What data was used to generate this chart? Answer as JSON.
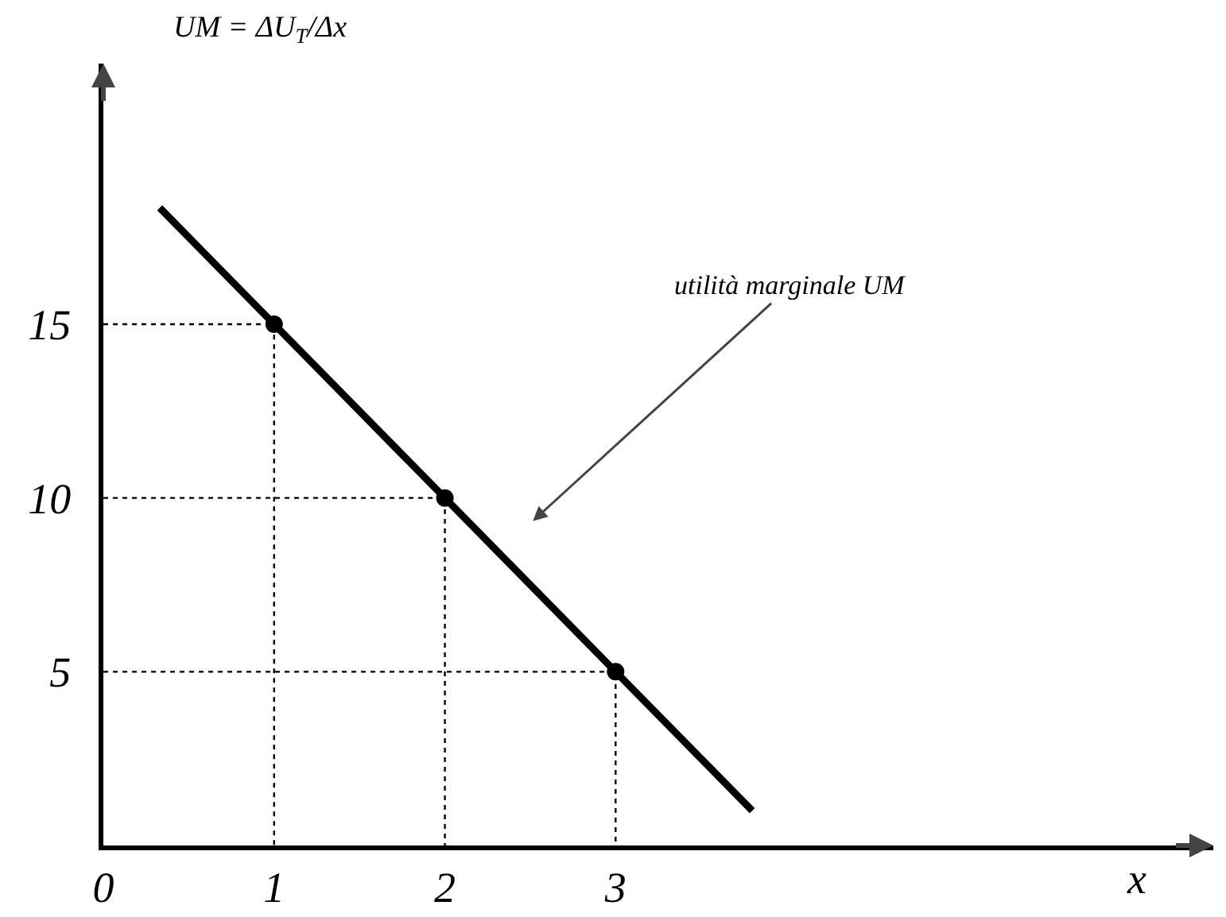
{
  "chart_data": {
    "type": "line",
    "ylabel": "UM = ΔU$_{T}$/Δx",
    "xlabel": "x",
    "xlim": [
      0,
      6.5
    ],
    "ylim": [
      0,
      22.5
    ],
    "xticks": [
      0,
      1,
      2,
      3
    ],
    "yticks": [
      5,
      10,
      15
    ],
    "annotations": [
      "utilità marginale UM"
    ],
    "series": [
      {
        "color": "#000000",
        "x": [
          0.33,
          3.8
        ],
        "values": [
          18.35,
          1
        ],
        "line_style": "solid",
        "marker": "none"
      },
      {
        "type": "scatter",
        "color": "#000000",
        "x": [
          1,
          2,
          3
        ],
        "values": [
          15,
          10,
          5
        ],
        "marker": "circle"
      },
      {
        "color": "#000000",
        "x": [
          0,
          1,
          1
        ],
        "values": [
          15,
          15,
          0
        ],
        "line_style": "dotted",
        "marker": "none"
      },
      {
        "color": "#000000",
        "x": [
          0,
          2,
          2
        ],
        "values": [
          10,
          10,
          0
        ],
        "line_style": "dotted",
        "marker": "none"
      },
      {
        "color": "#000000",
        "x": [
          0,
          3,
          3
        ],
        "values": [
          5,
          5,
          0
        ],
        "line_style": "dotted",
        "marker": "none"
      }
    ]
  }
}
